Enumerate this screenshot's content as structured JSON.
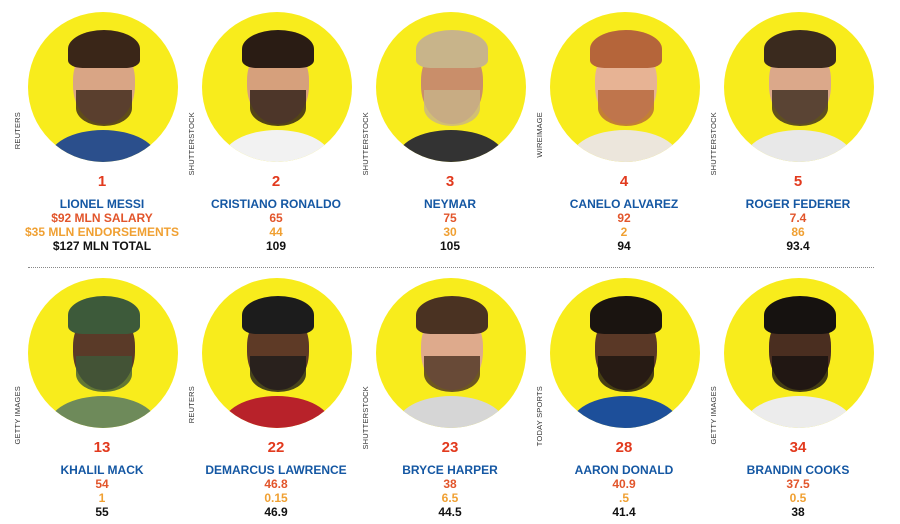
{
  "colors": {
    "circle": "#f8ec1c",
    "rank": "#e23a1e",
    "name": "#1457a3",
    "salary": "#e2552b",
    "endorsements": "#f0a032",
    "total": "#111111"
  },
  "rows": [
    [
      {
        "rank": "1",
        "name": "LIONEL MESSI",
        "salary": "$92 MLN SALARY",
        "endorsements": "$35 MLN ENDORSEMENTS",
        "total": "$127 MLN TOTAL",
        "credit": "REUTERS",
        "skin": "#d9a585",
        "hair": "#3a2618",
        "shirt": "#2b4f8c"
      },
      {
        "rank": "2",
        "name": "CRISTIANO RONALDO",
        "salary": "65",
        "endorsements": "44",
        "total": "109",
        "credit": "SHUTTERSTOCK",
        "skin": "#d6a07c",
        "hair": "#2a1c14",
        "shirt": "#f2f2f2"
      },
      {
        "rank": "3",
        "name": "NEYMAR",
        "salary": "75",
        "endorsements": "30",
        "total": "105",
        "credit": "SHUTTERSTOCK",
        "skin": "#c98e6a",
        "hair": "#c8b48a",
        "shirt": "#333333"
      },
      {
        "rank": "4",
        "name": "CANELO ALVAREZ",
        "salary": "92",
        "endorsements": "2",
        "total": "94",
        "credit": "WIREIMAGE",
        "skin": "#e7b394",
        "hair": "#b5653a",
        "shirt": "#ece6dc"
      },
      {
        "rank": "5",
        "name": "ROGER FEDERER",
        "salary": "7.4",
        "endorsements": "86",
        "total": "93.4",
        "credit": "SHUTTERSTOCK",
        "skin": "#dba88a",
        "hair": "#3a2a1e",
        "shirt": "#e8e8e8"
      }
    ],
    [
      {
        "rank": "13",
        "name": "KHALIL MACK",
        "salary": "54",
        "endorsements": "1",
        "total": "55",
        "credit": "GETTY IMAGES",
        "skin": "#5a3a28",
        "hair": "#3d5a3a",
        "shirt": "#6e8a5a"
      },
      {
        "rank": "22",
        "name": "DEMARCUS LAWRENCE",
        "salary": "46.8",
        "endorsements": "0.15",
        "total": "46.9",
        "credit": "REUTERS",
        "skin": "#5e3a26",
        "hair": "#1c1c1c",
        "shirt": "#b8222a"
      },
      {
        "rank": "23",
        "name": "BRYCE HARPER",
        "salary": "38",
        "endorsements": "6.5",
        "total": "44.5",
        "credit": "SHUTTERSTOCK",
        "skin": "#deaa8c",
        "hair": "#4a3222",
        "shirt": "#d6d6d6"
      },
      {
        "rank": "28",
        "name": "AARON DONALD",
        "salary": "40.9",
        "endorsements": ".5",
        "total": "41.4",
        "credit": "TODAY SPORTS",
        "skin": "#5a3826",
        "hair": "#1a1410",
        "shirt": "#1d4f9a"
      },
      {
        "rank": "34",
        "name": "BRANDIN COOKS",
        "salary": "37.5",
        "endorsements": "0.5",
        "total": "38",
        "credit": "GETTY IMAGES",
        "skin": "#4a2e20",
        "hair": "#161210",
        "shirt": "#ececec"
      }
    ]
  ]
}
